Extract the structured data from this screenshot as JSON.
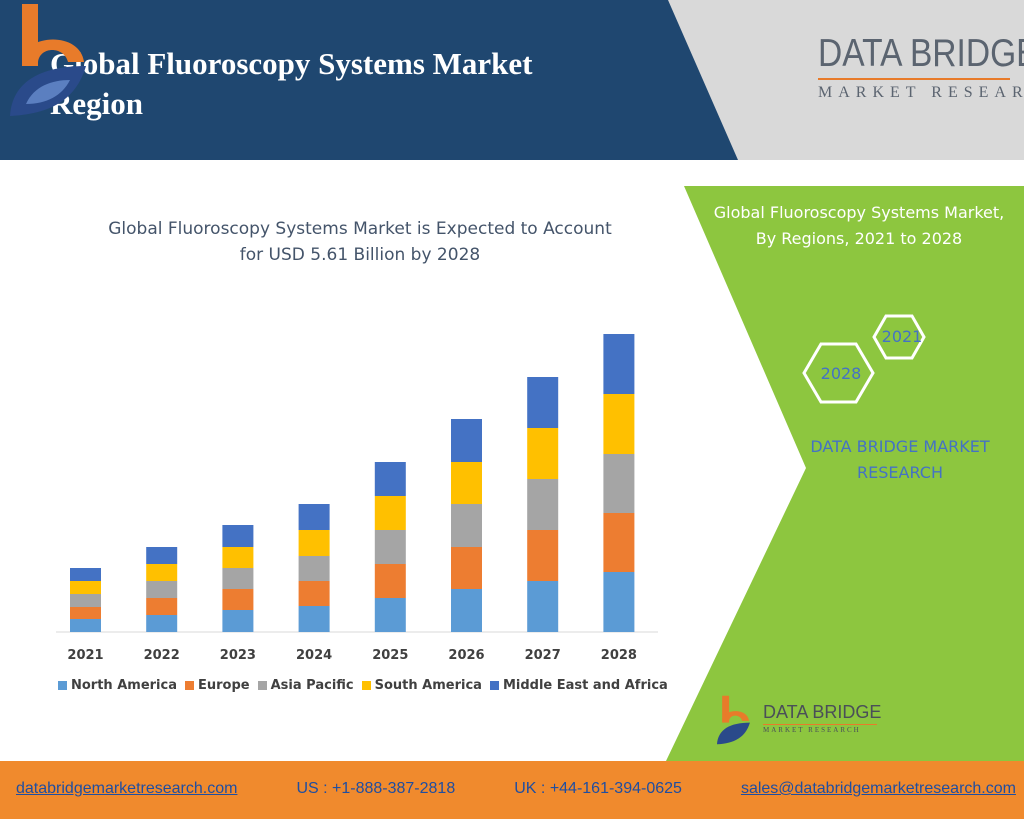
{
  "header": {
    "title_line1": "Global Fluoroscopy Systems Market",
    "title_line2": "Region",
    "brand_name": "DATA BRIDGE",
    "brand_sub": "MARKET RESEARCH"
  },
  "side_panel": {
    "title_line1": "Global Fluoroscopy Systems Market,",
    "title_line2": "By Regions, 2021 to 2028",
    "hex_a": "2021",
    "hex_b": "2028",
    "note_line1": "DATA BRIDGE MARKET",
    "note_line2": "RESEARCH",
    "brand_name": "DATA BRIDGE",
    "brand_sub": "MARKET RESEARCH"
  },
  "chart_data": {
    "type": "bar",
    "stacked": true,
    "title_line1": "Global Fluoroscopy Systems Market is Expected to Account",
    "title_line2": "for USD 5.61 Billion by 2028",
    "categories": [
      "2021",
      "2022",
      "2023",
      "2024",
      "2025",
      "2026",
      "2027",
      "2028"
    ],
    "series": [
      {
        "name": "North America",
        "color": "#5b9bd5",
        "values": [
          13,
          17,
          22,
          26,
          34,
          43,
          51,
          60
        ]
      },
      {
        "name": "Europe",
        "color": "#ed7d31",
        "values": [
          12,
          17,
          21,
          25,
          34,
          42,
          51,
          59
        ]
      },
      {
        "name": "Asia Pacific",
        "color": "#a5a5a5",
        "values": [
          13,
          17,
          21,
          25,
          34,
          43,
          51,
          59
        ]
      },
      {
        "name": "South America",
        "color": "#ffc000",
        "values": [
          13,
          17,
          21,
          26,
          34,
          42,
          51,
          60
        ]
      },
      {
        "name": "Middle East and Africa",
        "color": "#4472c4",
        "values": [
          13,
          17,
          22,
          26,
          34,
          43,
          51,
          60
        ]
      }
    ],
    "legend_position": "bottom",
    "grid": false
  },
  "footer": {
    "website": "databridgemarketresearch.com",
    "us_phone": "US : +1-888-387-2818",
    "uk_phone": "UK : +44-161-394-0625",
    "email": "sales@databridgemarketresearch.com"
  },
  "colors": {
    "navy": "#1f4770",
    "green": "#8dc63f",
    "orange": "#f08a2d",
    "accent_blue": "#4472c4"
  }
}
